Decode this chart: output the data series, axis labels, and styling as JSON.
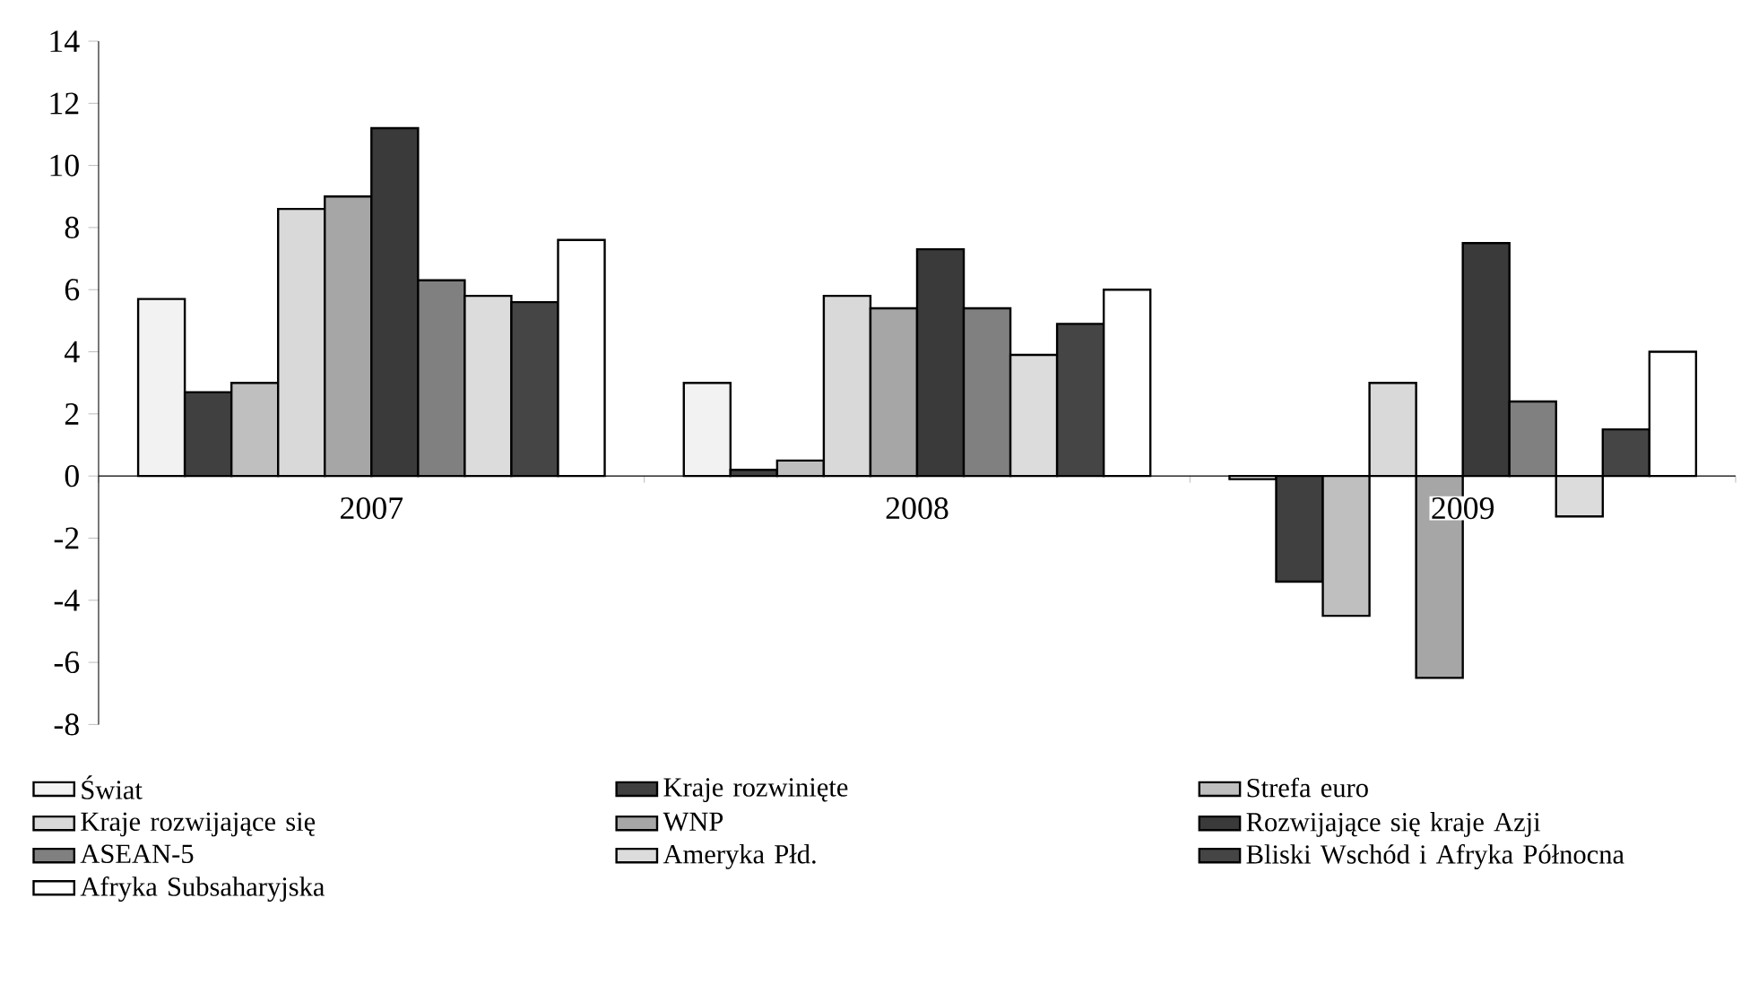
{
  "chart_data": {
    "type": "bar",
    "categories": [
      "2007",
      "2008",
      "2009"
    ],
    "series": [
      {
        "name": "Świat",
        "color": "#f2f2f2",
        "values": [
          5.7,
          3.0,
          -0.1
        ]
      },
      {
        "name": "Kraje rozwinięte",
        "color": "#404040",
        "values": [
          2.7,
          0.2,
          -3.4
        ]
      },
      {
        "name": "Strefa euro",
        "color": "#bfbfbf",
        "values": [
          3.0,
          0.5,
          -4.5
        ]
      },
      {
        "name": "Kraje rozwijające się",
        "color": "#d9d9d9",
        "values": [
          8.6,
          5.8,
          3.0
        ]
      },
      {
        "name": "WNP",
        "color": "#a6a6a6",
        "values": [
          9.0,
          5.4,
          -6.5
        ]
      },
      {
        "name": "Rozwijające się kraje Azji",
        "color": "#3a3a3a",
        "values": [
          11.2,
          7.3,
          7.5
        ]
      },
      {
        "name": "ASEAN-5",
        "color": "#808080",
        "values": [
          6.3,
          5.4,
          2.4
        ]
      },
      {
        "name": "Ameryka Płd.",
        "color": "#dcdcdc",
        "values": [
          5.8,
          3.9,
          -1.3
        ]
      },
      {
        "name": "Bliski Wschód i Afryka Północna",
        "color": "#454545",
        "values": [
          5.6,
          4.9,
          1.5
        ]
      },
      {
        "name": "Afryka Subsaharyjska",
        "color": "#ffffff",
        "values": [
          7.6,
          6.0,
          4.0
        ]
      }
    ],
    "ylim": [
      -8,
      14
    ],
    "yticks": [
      -8,
      -6,
      -4,
      -2,
      0,
      2,
      4,
      6,
      8,
      10,
      12,
      14
    ],
    "legend": "bottom"
  }
}
